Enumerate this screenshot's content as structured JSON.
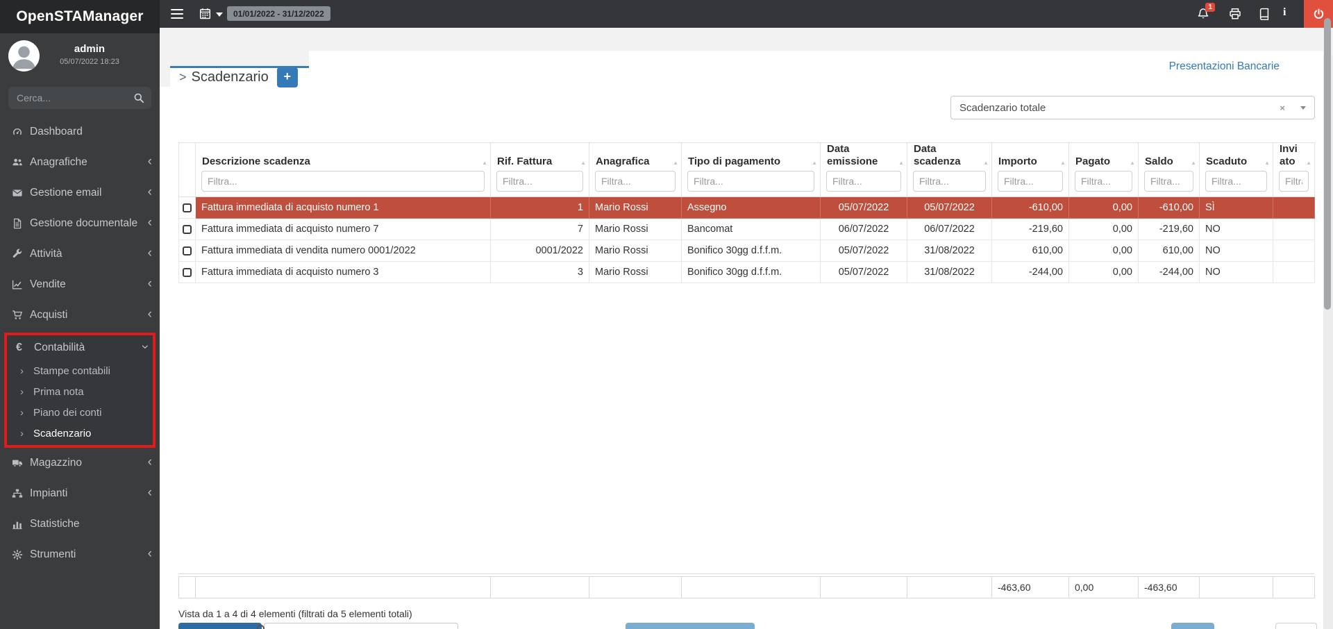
{
  "brand": "OpenSTAManager",
  "topbar": {
    "date_range": "01/01/2022 - 31/12/2022",
    "notification_count": "1"
  },
  "sidebar": {
    "user": {
      "name": "admin",
      "datetime": "05/07/2022 18:23"
    },
    "search": {
      "placeholder": "Cerca..."
    },
    "items_top": [
      {
        "icon": "tachometer-icon",
        "label": "Dashboard",
        "chevron": false
      },
      {
        "icon": "users-icon",
        "label": "Anagrafiche",
        "chevron": true
      },
      {
        "icon": "envelope-icon",
        "label": "Gestione email",
        "chevron": true
      },
      {
        "icon": "file-icon",
        "label": "Gestione documentale",
        "chevron": true
      },
      {
        "icon": "wrench-icon",
        "label": "Attività",
        "chevron": true
      },
      {
        "icon": "chart-line-icon",
        "label": "Vendite",
        "chevron": true
      },
      {
        "icon": "cart-icon",
        "label": "Acquisti",
        "chevron": true
      }
    ],
    "contabilita": {
      "icon": "euro-icon",
      "label": "Contabilità",
      "children": [
        {
          "label": "Stampe contabili",
          "active": false
        },
        {
          "label": "Prima nota",
          "active": false
        },
        {
          "label": "Piano dei conti",
          "active": false
        },
        {
          "label": "Scadenzario",
          "active": true
        }
      ]
    },
    "items_bottom": [
      {
        "icon": "truck-icon",
        "label": "Magazzino",
        "chevron": true
      },
      {
        "icon": "sitemap-icon",
        "label": "Impianti",
        "chevron": true
      },
      {
        "icon": "bar-chart-icon",
        "label": "Statistiche",
        "chevron": false
      },
      {
        "icon": "gear-icon",
        "label": "Strumenti",
        "chevron": true
      }
    ]
  },
  "main": {
    "tab_title": "Scadenzario",
    "tab_caret": ">",
    "add_button": "+",
    "top_link": "Presentazioni Bancarie",
    "filter_select_value": "Scadenzario totale",
    "select_clear": "×",
    "info_text": "Vista da 1 a 4 di 4 elementi (filtrati da 5 elementi totali)",
    "table": {
      "columns": [
        "",
        "Descrizione scadenza",
        "Rif. Fattura",
        "Anagrafica",
        "Tipo di pagamento",
        "Data emissione",
        "Data scadenza",
        "Importo",
        "Pagato",
        "Saldo",
        "Scaduto",
        "Inviato"
      ],
      "filter_placeholder": "Filtra...",
      "rows": [
        {
          "descrizione": "Fattura immediata di acquisto numero 1",
          "rif_fattura": "1",
          "anagrafica": "Mario Rossi",
          "tipo_pagamento": "Assegno",
          "data_emissione": "05/07/2022",
          "data_scadenza": "05/07/2022",
          "importo": "-610,00",
          "pagato": "0,00",
          "saldo": "-610,00",
          "scaduto": "SÌ",
          "inviato": "",
          "highlighted": true
        },
        {
          "descrizione": "Fattura immediata di acquisto numero 7",
          "rif_fattura": "7",
          "anagrafica": "Mario Rossi",
          "tipo_pagamento": "Bancomat",
          "data_emissione": "06/07/2022",
          "data_scadenza": "06/07/2022",
          "importo": "-219,60",
          "pagato": "0,00",
          "saldo": "-219,60",
          "scaduto": "NO",
          "inviato": "",
          "highlighted": false
        },
        {
          "descrizione": "Fattura immediata di vendita numero 0001/2022",
          "rif_fattura": "0001/2022",
          "anagrafica": "Mario Rossi",
          "tipo_pagamento": "Bonifico 30gg d.f.f.m.",
          "data_emissione": "05/07/2022",
          "data_scadenza": "31/08/2022",
          "importo": "610,00",
          "pagato": "0,00",
          "saldo": "610,00",
          "scaduto": "NO",
          "inviato": "",
          "highlighted": false
        },
        {
          "descrizione": "Fattura immediata di acquisto numero 3",
          "rif_fattura": "3",
          "anagrafica": "Mario Rossi",
          "tipo_pagamento": "Bonifico 30gg d.f.f.m.",
          "data_emissione": "05/07/2022",
          "data_scadenza": "31/08/2022",
          "importo": "-244,00",
          "pagato": "0,00",
          "saldo": "-244,00",
          "scaduto": "NO",
          "inviato": "",
          "highlighted": false
        }
      ],
      "footer_totals": {
        "importo": "-463,60",
        "pagato": "0,00",
        "saldo": "-463,60"
      }
    }
  }
}
